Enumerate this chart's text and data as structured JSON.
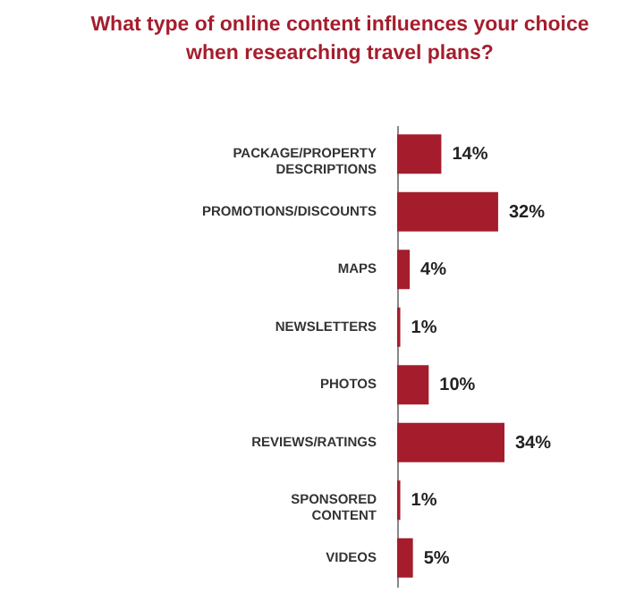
{
  "chart_data": {
    "type": "bar",
    "orientation": "horizontal",
    "title": "What type of online content influences your choice when researching travel plans?",
    "categories": [
      "PACKAGE/PROPERTY DESCRIPTIONS",
      "PROMOTIONS/DISCOUNTS",
      "MAPS",
      "NEWSLETTERS",
      "PHOTOS",
      "REVIEWS/RATINGS",
      "SPONSORED CONTENT",
      "VIDEOS"
    ],
    "values": [
      14,
      32,
      4,
      1,
      10,
      34,
      1,
      5
    ],
    "value_labels": [
      "14%",
      "32%",
      "4%",
      "1%",
      "10%",
      "34%",
      "1%",
      "5%"
    ],
    "color": "#a51d2d"
  }
}
